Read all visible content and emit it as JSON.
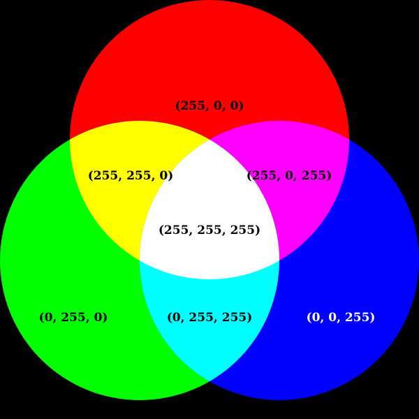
{
  "colors": {
    "background": "#000000",
    "red": "#ff0000",
    "green": "#00ff00",
    "blue": "#0000ff",
    "yellow": "#ffff00",
    "magenta": "#ff00ff",
    "cyan": "#00ffff",
    "white": "#ffffff",
    "label_dark": "#000000",
    "label_light": "#ffffff"
  },
  "regions": {
    "red": {
      "label": "(255, 0, 0)"
    },
    "green": {
      "label": "(0, 255, 0)"
    },
    "blue": {
      "label": "(0, 0, 255)"
    },
    "yellow": {
      "label": "(255, 255, 0)"
    },
    "magenta": {
      "label": "(255, 0, 255)"
    },
    "cyan": {
      "label": "(0, 255, 255)"
    },
    "white": {
      "label": "(255, 255, 255)"
    }
  }
}
